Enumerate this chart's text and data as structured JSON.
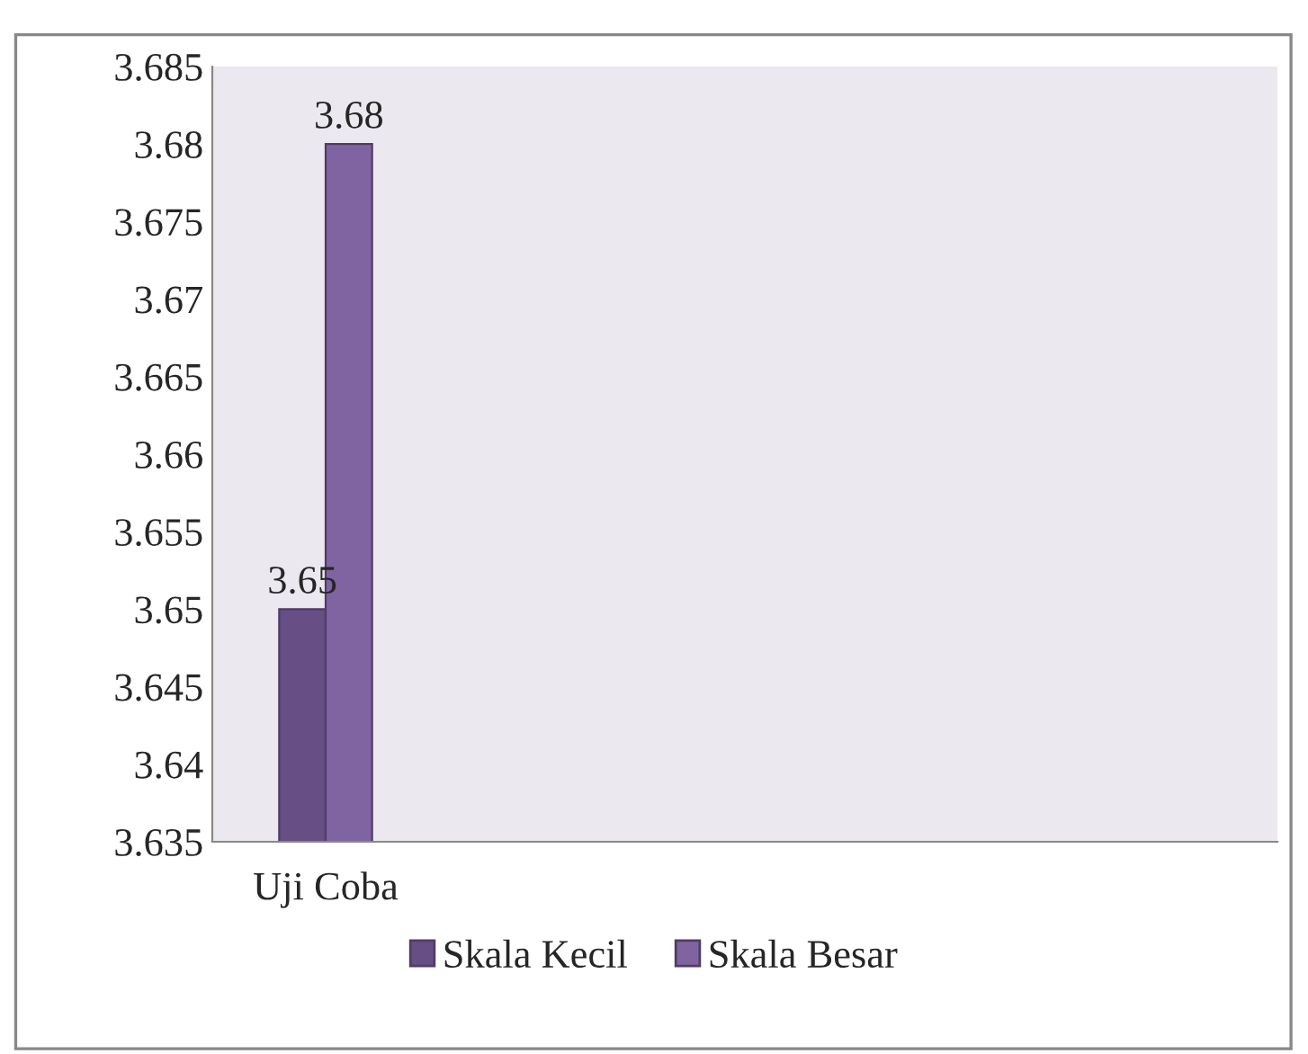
{
  "chart_data": {
    "type": "bar",
    "categories": [
      "Uji Coba"
    ],
    "series": [
      {
        "name": "Skala Kecil",
        "color": "#674f85",
        "values": [
          3.65
        ]
      },
      {
        "name": "Skala Besar",
        "color": "#8064a2",
        "values": [
          3.68
        ]
      }
    ],
    "ylim": [
      3.635,
      3.685
    ],
    "yticks": [
      {
        "value": 3.635,
        "label": "3.635"
      },
      {
        "value": 3.64,
        "label": "3.64"
      },
      {
        "value": 3.645,
        "label": "3.645"
      },
      {
        "value": 3.65,
        "label": "3.65"
      },
      {
        "value": 3.655,
        "label": "3.655"
      },
      {
        "value": 3.66,
        "label": "3.66"
      },
      {
        "value": 3.665,
        "label": "3.665"
      },
      {
        "value": 3.67,
        "label": "3.67"
      },
      {
        "value": 3.675,
        "label": "3.675"
      },
      {
        "value": 3.68,
        "label": "3.68"
      },
      {
        "value": 3.685,
        "label": "3.685"
      }
    ],
    "data_labels": true,
    "legend": "bottom",
    "grid": false
  }
}
